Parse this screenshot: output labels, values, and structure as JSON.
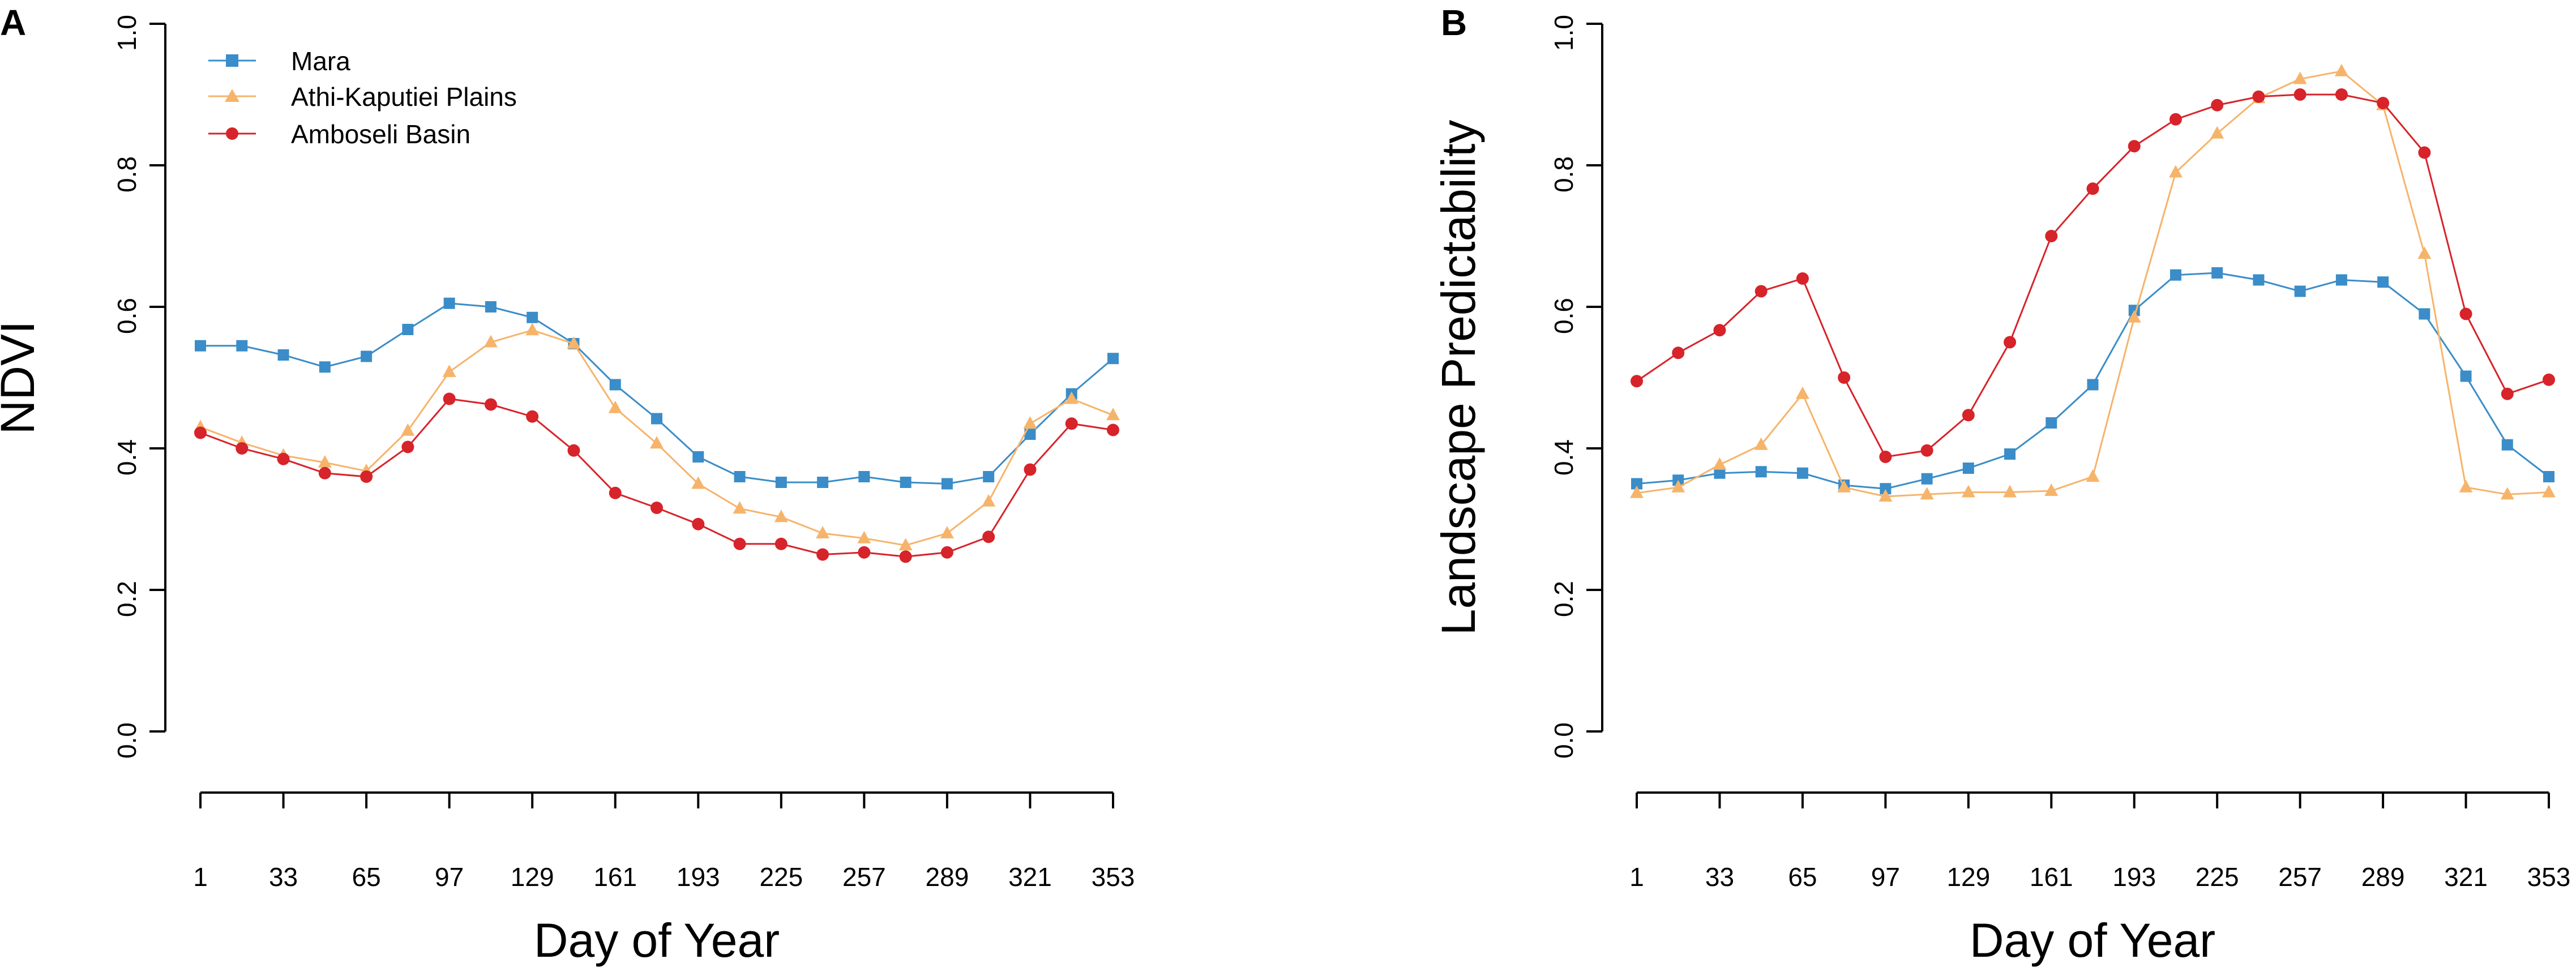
{
  "colors": {
    "Mara": "#3a8dc8",
    "Athi-Kaputiei Plains": "#f6b46b",
    "Amboseli Basin": "#d7232a"
  },
  "chart_data": [
    {
      "panel": "A",
      "type": "line",
      "title": "",
      "xlabel": "Day of Year",
      "ylabel": "NDVI",
      "xticks": [
        1,
        33,
        65,
        97,
        129,
        161,
        193,
        225,
        257,
        289,
        321,
        353
      ],
      "xtick_labels": [
        "1",
        "33",
        "65",
        "97",
        "129",
        "161",
        "193",
        "225",
        "257",
        "289",
        "321",
        "353"
      ],
      "yticks": [
        0.0,
        0.2,
        0.4,
        0.6,
        0.8,
        1.0
      ],
      "ytick_labels": [
        "0.0",
        "0.2",
        "0.4",
        "0.6",
        "0.8",
        "1.0"
      ],
      "ylim": [
        0,
        1
      ],
      "xlim": [
        1,
        353
      ],
      "legend": "top-left",
      "x": [
        1,
        17,
        33,
        49,
        65,
        81,
        97,
        113,
        129,
        145,
        161,
        177,
        193,
        209,
        225,
        241,
        257,
        273,
        289,
        305,
        321,
        337,
        353
      ],
      "series": [
        {
          "name": "Mara",
          "marker": "square",
          "values": [
            0.545,
            0.545,
            0.532,
            0.515,
            0.53,
            0.568,
            0.605,
            0.6,
            0.585,
            0.548,
            0.49,
            0.442,
            0.388,
            0.36,
            0.352,
            0.352,
            0.36,
            0.352,
            0.35,
            0.36,
            0.42,
            0.477,
            0.527
          ]
        },
        {
          "name": "Athi-Kaputiei Plains",
          "marker": "triangle",
          "values": [
            0.43,
            0.408,
            0.39,
            0.38,
            0.368,
            0.425,
            0.508,
            0.55,
            0.567,
            0.548,
            0.457,
            0.407,
            0.35,
            0.315,
            0.303,
            0.28,
            0.273,
            0.263,
            0.28,
            0.325,
            0.435,
            0.47,
            0.447
          ]
        },
        {
          "name": "Amboseli Basin",
          "marker": "circle",
          "values": [
            0.422,
            0.4,
            0.385,
            0.365,
            0.36,
            0.402,
            0.47,
            0.462,
            0.445,
            0.397,
            0.337,
            0.316,
            0.293,
            0.265,
            0.265,
            0.25,
            0.253,
            0.247,
            0.253,
            0.275,
            0.37,
            0.435,
            0.426
          ]
        }
      ]
    },
    {
      "panel": "B",
      "type": "line",
      "title": "",
      "xlabel": "Day of Year",
      "ylabel": "Landscape Predictability",
      "xticks": [
        1,
        33,
        65,
        97,
        129,
        161,
        193,
        225,
        257,
        289,
        321,
        353
      ],
      "xtick_labels": [
        "1",
        "33",
        "65",
        "97",
        "129",
        "161",
        "193",
        "225",
        "257",
        "289",
        "321",
        "353"
      ],
      "yticks": [
        0.0,
        0.2,
        0.4,
        0.6,
        0.8,
        1.0
      ],
      "ytick_labels": [
        "0.0",
        "0.2",
        "0.4",
        "0.6",
        "0.8",
        "1.0"
      ],
      "ylim": [
        0,
        1
      ],
      "xlim": [
        1,
        353
      ],
      "legend": "",
      "x": [
        1,
        17,
        33,
        49,
        65,
        81,
        97,
        113,
        129,
        145,
        161,
        177,
        193,
        209,
        225,
        241,
        257,
        273,
        289,
        305,
        321,
        337,
        353
      ],
      "series": [
        {
          "name": "Mara",
          "marker": "square",
          "values": [
            0.35,
            0.355,
            0.365,
            0.367,
            0.365,
            0.348,
            0.343,
            0.357,
            0.372,
            0.392,
            0.436,
            0.49,
            0.595,
            0.645,
            0.648,
            0.638,
            0.622,
            0.638,
            0.635,
            0.59,
            0.502,
            0.405,
            0.36
          ]
        },
        {
          "name": "Athi-Kaputiei Plains",
          "marker": "triangle",
          "values": [
            0.337,
            0.345,
            0.377,
            0.405,
            0.477,
            0.345,
            0.332,
            0.335,
            0.338,
            0.338,
            0.34,
            0.36,
            0.585,
            0.79,
            0.845,
            0.895,
            0.922,
            0.933,
            0.885,
            0.675,
            0.345,
            0.335,
            0.338
          ]
        },
        {
          "name": "Amboseli Basin",
          "marker": "circle",
          "values": [
            0.495,
            0.535,
            0.567,
            0.622,
            0.64,
            0.5,
            0.388,
            0.397,
            0.447,
            0.55,
            0.7,
            0.767,
            0.827,
            0.865,
            0.885,
            0.897,
            0.9,
            0.9,
            0.888,
            0.818,
            0.59,
            0.477,
            0.497
          ]
        }
      ]
    }
  ]
}
